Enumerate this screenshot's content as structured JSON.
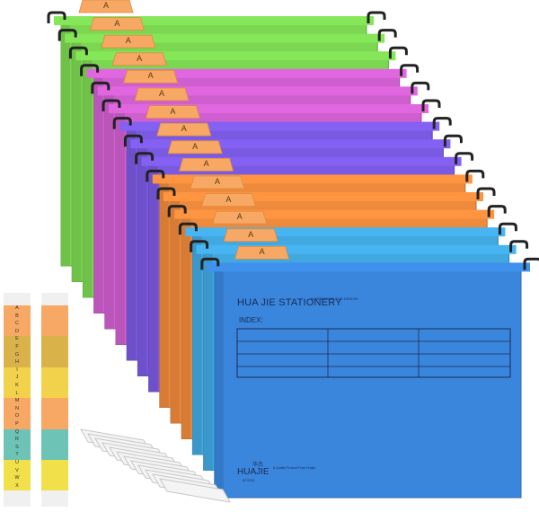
{
  "tab_letter": "A",
  "folder": {
    "title": "HUA JIE STATIONERY",
    "subtitle": "SUSPENSION FILE DESIGN",
    "index_label": "INDEX:",
    "brand_cn": "华杰",
    "brand": "HUAJIE",
    "brand_code": "BT0001",
    "brand_note": "A Quality Product From Huajie"
  },
  "folder_colors": [
    "#7bd651",
    "#7bd651",
    "#7bd651",
    "#cf5fcf",
    "#cf5fcf",
    "#cf5fcf",
    "#7a5ae0",
    "#7a5ae0",
    "#7a5ae0",
    "#ee8a3c",
    "#ee8a3c",
    "#ee8a3c",
    "#42a8e0",
    "#42a8e0",
    "#3a86dc"
  ],
  "index_strip_letters": [
    "A",
    "B",
    "C",
    "D",
    "E",
    "F",
    "G",
    "H",
    "I",
    "J",
    "K",
    "L",
    "M",
    "N",
    "O",
    "P",
    "Q",
    "R",
    "S",
    "T",
    "U",
    "V",
    "W",
    "X"
  ],
  "index_strip_colors": [
    "#f7a864",
    "#f7a864",
    "#f7a864",
    "#f7a864",
    "#d9b24a",
    "#d9b24a",
    "#d9b24a",
    "#d9b24a",
    "#f2d24a",
    "#f2d24a",
    "#f2d24a",
    "#f2d24a",
    "#f7a864",
    "#f7a864",
    "#f7a864",
    "#f7a864",
    "#6cc3b6",
    "#6cc3b6",
    "#6cc3b6",
    "#6cc3b6",
    "#f2e04a",
    "#f2e04a",
    "#f2e04a",
    "#f2e04a"
  ]
}
